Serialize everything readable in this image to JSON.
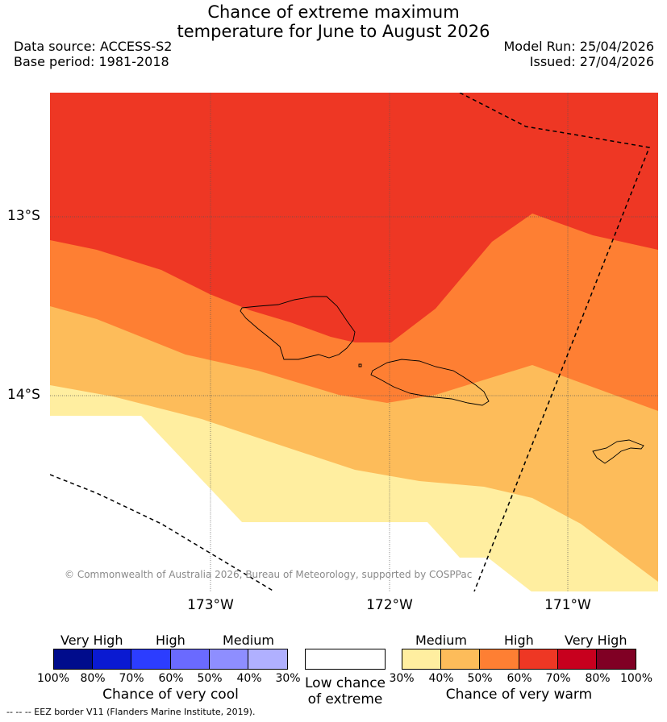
{
  "title_line1": "Chance of extreme maximum",
  "title_line2": "temperature for June to August 2026",
  "data_source": "Data source: ACCESS-S2",
  "base_period": "Base period: 1981-2018",
  "model_run": "Model Run: 25/04/2026",
  "issued": "Issued: 27/04/2026",
  "lat_labels": [
    "13°S",
    "14°S"
  ],
  "lon_labels": [
    "173°W",
    "172°W",
    "171°W"
  ],
  "copyright": "© Commonwealth of Australia 2026, Bureau of Meteorology, supported by COSPPac",
  "cool_scale": {
    "categories": [
      "Very High",
      "High",
      "Medium"
    ],
    "colors": [
      "#000c8c",
      "#0a1ad2",
      "#2c3dff",
      "#6a6aff",
      "#8e8eff",
      "#b0b0ff"
    ],
    "ticks": [
      "100%",
      "80%",
      "70%",
      "60%",
      "50%",
      "40%",
      "30%"
    ],
    "title": "Chance of very cool"
  },
  "low_chance": {
    "line1": "Low chance",
    "line2": "of extreme",
    "color": "#ffffff"
  },
  "warm_scale": {
    "categories": [
      "Medium",
      "High",
      "Very High"
    ],
    "colors": [
      "#ffeea0",
      "#fdbc5a",
      "#fe7f33",
      "#ee3724",
      "#c8001e",
      "#800024"
    ],
    "ticks": [
      "30%",
      "40%",
      "50%",
      "60%",
      "70%",
      "80%",
      "100%"
    ],
    "title": "Chance of very warm"
  },
  "footnote": "--  --  -- EEZ border V11 (Flanders Marine Institute, 2019)."
}
